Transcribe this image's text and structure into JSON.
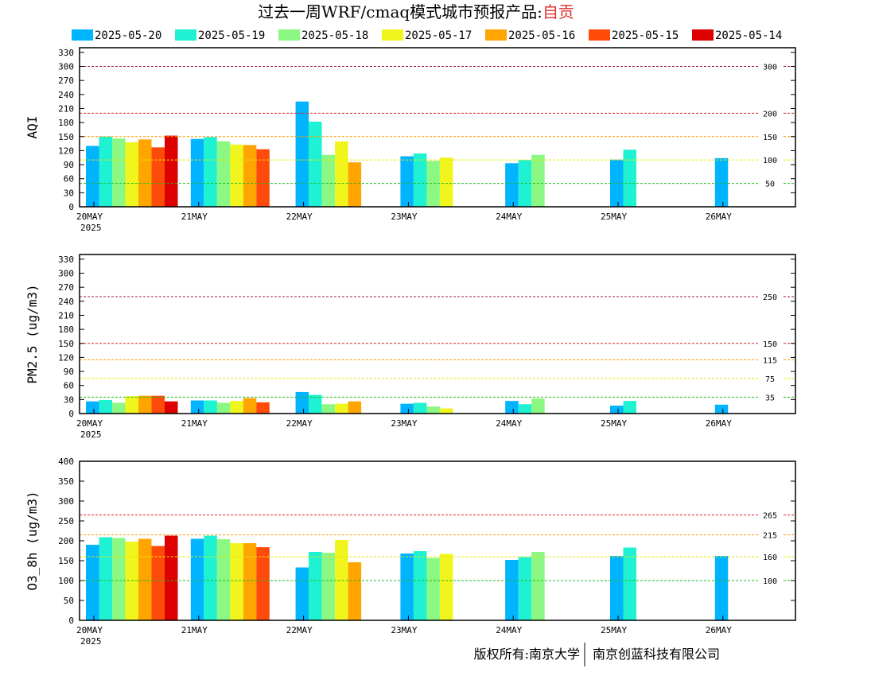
{
  "title": {
    "prefix": "过去一周WRF/cmaq模式城市预报产品:",
    "city": "自贡"
  },
  "footer": {
    "left": "版权所有:南京大学",
    "right": "南京创蓝科技有限公司"
  },
  "colors": {
    "series": [
      "#00b4ff",
      "#1ef2d2",
      "#8af882",
      "#f0f51e",
      "#ffa500",
      "#ff4b0a",
      "#dc0000"
    ],
    "ref_lines": {
      "green": "#22bb22",
      "yellow": "#e8e800",
      "orange": "#ff9900",
      "red": "#dd2222",
      "purple": "#a0145a"
    }
  },
  "chart_data": {
    "type": "bar",
    "legend": [
      "2025-05-20",
      "2025-05-19",
      "2025-05-18",
      "2025-05-17",
      "2025-05-16",
      "2025-05-15",
      "2025-05-14"
    ],
    "legend_placement": "top",
    "categories": [
      "20MAY",
      "21MAY",
      "22MAY",
      "23MAY",
      "24MAY",
      "25MAY",
      "26MAY"
    ],
    "first_category_sublabel": "2025",
    "panels": [
      {
        "ylabel": "AQI",
        "ylim": [
          0,
          340
        ],
        "yticks": [
          0,
          30,
          60,
          90,
          120,
          150,
          180,
          210,
          240,
          270,
          300,
          330
        ],
        "ref_lines": [
          {
            "value": 50,
            "label": "50",
            "color": "green"
          },
          {
            "value": 100,
            "label": "100",
            "color": "yellow"
          },
          {
            "value": 150,
            "label": "150",
            "color": "orange"
          },
          {
            "value": 200,
            "label": "200",
            "color": "red"
          },
          {
            "value": 300,
            "label": "300",
            "color": "purple"
          }
        ],
        "series": [
          {
            "values": [
              130,
              145,
              225,
              108,
              93,
              101,
              104
            ]
          },
          {
            "values": [
              150,
              149,
              182,
              114,
              100,
              122,
              null
            ]
          },
          {
            "values": [
              146,
              140,
              111,
              98,
              111,
              null,
              null
            ]
          },
          {
            "values": [
              138,
              133,
              140,
              105,
              null,
              null,
              null
            ]
          },
          {
            "values": [
              144,
              132,
              95,
              null,
              null,
              null,
              null
            ]
          },
          {
            "values": [
              127,
              123,
              null,
              null,
              null,
              null,
              null
            ]
          },
          {
            "values": [
              152,
              null,
              null,
              null,
              null,
              null,
              null
            ]
          }
        ]
      },
      {
        "ylabel": "PM2.5 (ug/m3)",
        "ylim": [
          0,
          340
        ],
        "yticks": [
          0,
          30,
          60,
          90,
          120,
          150,
          180,
          210,
          240,
          270,
          300,
          330
        ],
        "ref_lines": [
          {
            "value": 35,
            "label": "35",
            "color": "green"
          },
          {
            "value": 75,
            "label": "75",
            "color": "yellow"
          },
          {
            "value": 115,
            "label": "115",
            "color": "orange"
          },
          {
            "value": 150,
            "label": "150",
            "color": "red"
          },
          {
            "value": 250,
            "label": "250",
            "color": "purple"
          }
        ],
        "series": [
          {
            "values": [
              26,
              28,
              46,
              21,
              27,
              17,
              19
            ]
          },
          {
            "values": [
              29,
              28,
              40,
              23,
              20,
              27,
              null
            ]
          },
          {
            "values": [
              23,
              23,
              20,
              15,
              32,
              null,
              null
            ]
          },
          {
            "values": [
              37,
              27,
              21,
              11,
              null,
              null,
              null
            ]
          },
          {
            "values": [
              38,
              33,
              26,
              null,
              null,
              null,
              null
            ]
          },
          {
            "values": [
              38,
              24,
              null,
              null,
              null,
              null,
              null
            ]
          },
          {
            "values": [
              26,
              null,
              null,
              null,
              null,
              null,
              null
            ]
          }
        ]
      },
      {
        "ylabel": "O3_8h (ug/m3)",
        "ylim": [
          0,
          400
        ],
        "yticks": [
          0,
          50,
          100,
          150,
          200,
          250,
          300,
          350,
          400
        ],
        "ref_lines": [
          {
            "value": 100,
            "label": "100",
            "color": "green"
          },
          {
            "value": 160,
            "label": "160",
            "color": "yellow"
          },
          {
            "value": 215,
            "label": "215",
            "color": "orange"
          },
          {
            "value": 265,
            "label": "265",
            "color": "red"
          }
        ],
        "series": [
          {
            "values": [
              190,
              205,
              133,
              168,
              152,
              162,
              162
            ]
          },
          {
            "values": [
              209,
              213,
              172,
              174,
              159,
              183,
              null
            ]
          },
          {
            "values": [
              207,
              204,
              170,
              157,
              172,
              null,
              null
            ]
          },
          {
            "values": [
              198,
              194,
              202,
              167,
              null,
              null,
              null
            ]
          },
          {
            "values": [
              205,
              194,
              146,
              null,
              null,
              null,
              null
            ]
          },
          {
            "values": [
              187,
              184,
              null,
              null,
              null,
              null,
              null
            ]
          },
          {
            "values": [
              213,
              null,
              null,
              null,
              null,
              null,
              null
            ]
          }
        ]
      }
    ]
  }
}
